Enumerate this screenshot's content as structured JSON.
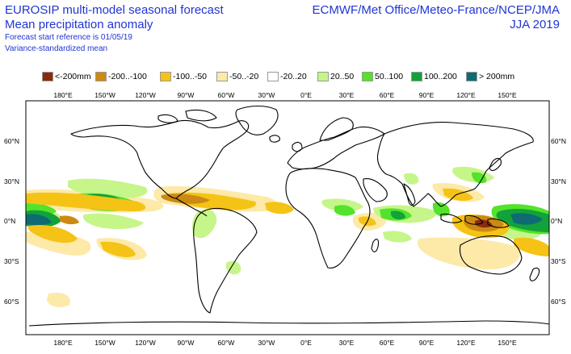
{
  "header": {
    "title_line1": "EUROSIP multi-model seasonal forecast",
    "title_line2": "Mean precipitation anomaly",
    "subtitle_line1": "Forecast start reference is 01/05/19",
    "subtitle_line2": "Variance-standardized mean",
    "centres": "ECMWF/Met Office/Meteo-France/NCEP/JMA",
    "period": "JJA 2019"
  },
  "legend": [
    {
      "label": "<-200mm",
      "color": "#8b2b0c"
    },
    {
      "label": "-200..-100",
      "color": "#cc8a12"
    },
    {
      "label": "-100..-50",
      "color": "#f5c316"
    },
    {
      "label": "-50..-20",
      "color": "#fde9a8"
    },
    {
      "label": "-20..20",
      "color": "#ffffff"
    },
    {
      "label": "20..50",
      "color": "#c6f58a"
    },
    {
      "label": "50..100",
      "color": "#53e32a"
    },
    {
      "label": "100..200",
      "color": "#12a23a"
    },
    {
      "label": "> 200mm",
      "color": "#0f6b73"
    }
  ],
  "map": {
    "projection": "equirectangular",
    "lon_ticks_top": [
      "180°E",
      "150°W",
      "120°W",
      "90°W",
      "60°W",
      "30°W",
      "0°E",
      "30°E",
      "60°E",
      "90°E",
      "120°E",
      "150°E"
    ],
    "lon_ticks_bottom": [
      "180°E",
      "150°W",
      "120°W",
      "90°W",
      "60°W",
      "30°W",
      "0°E",
      "30°E",
      "60°E",
      "90°E",
      "120°E",
      "150°E"
    ],
    "lat_ticks_left": [
      "60°N",
      "30°N",
      "0°N",
      "30°S",
      "60°S"
    ],
    "lat_ticks_right": [
      "60°N",
      "30°N",
      "0°N",
      "30°S",
      "60°S"
    ]
  }
}
